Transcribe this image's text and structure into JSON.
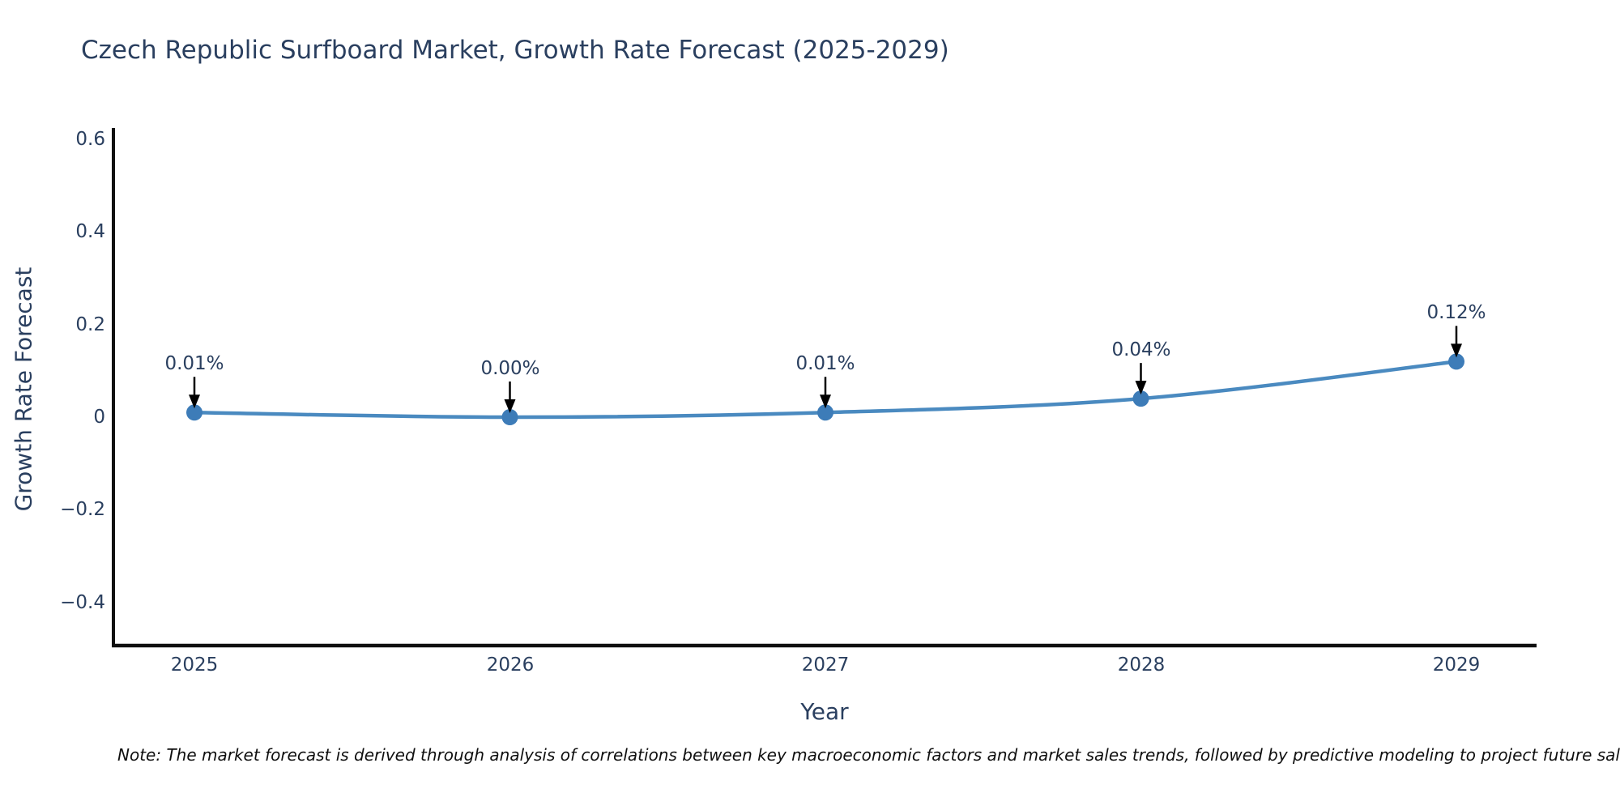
{
  "chart_data": {
    "type": "line",
    "title": "Czech Republic Surfboard Market, Growth Rate Forecast (2025-2029)",
    "xlabel": "Year",
    "ylabel": "Growth Rate Forecast",
    "x": [
      2025,
      2026,
      2027,
      2028,
      2029
    ],
    "values": [
      0.01,
      0.0,
      0.01,
      0.04,
      0.12
    ],
    "point_labels": [
      "0.01%",
      "0.00%",
      "0.01%",
      "0.04%",
      "0.12%"
    ],
    "x_tick_labels": [
      "2025",
      "2026",
      "2027",
      "2028",
      "2029"
    ],
    "y_tick_values": [
      0.6,
      0.4,
      0.2,
      0,
      -0.2,
      -0.4
    ],
    "y_tick_labels": [
      "0.6",
      "0.4",
      "0.2",
      "0",
      "−0.2",
      "−0.4"
    ],
    "ylim": [
      -0.5,
      0.62
    ],
    "grid": false,
    "legend": "none",
    "line_color": "#4a8ac0",
    "marker_color": "#3d7cb8",
    "axis_color": "#101010",
    "arrow_color": "#000000",
    "title_color": "#2a3f5f",
    "tick_color": "#2a3f5f"
  },
  "note": "Note: The market forecast is derived through analysis of correlations between key macroeconomic factors and market sales trends, followed by predictive modeling to project future sales."
}
